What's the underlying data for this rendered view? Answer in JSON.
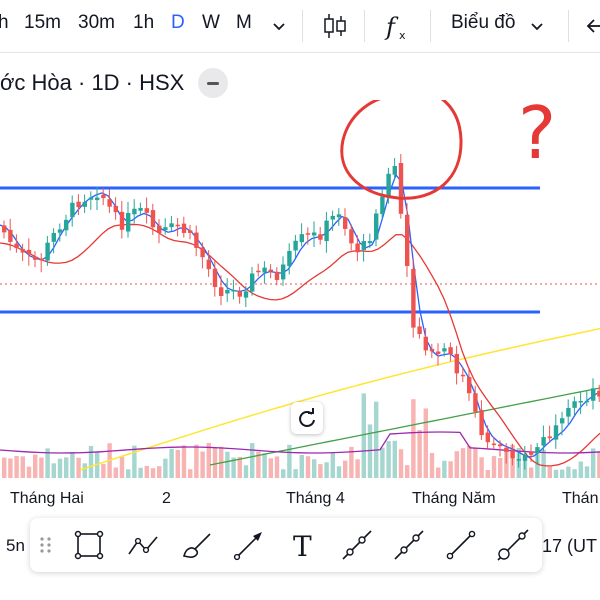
{
  "toolbar": {
    "timeframes": [
      "h",
      "15m",
      "30m",
      "1h",
      "D",
      "W",
      "M"
    ],
    "active": "D",
    "chart_type_label": "Biểu đồ"
  },
  "symbol": {
    "title": "ớc Hòa · 1D · HSX"
  },
  "xaxis": {
    "labels": [
      "Tháng Hai",
      "2",
      "Tháng 4",
      "Tháng Năm",
      "Thán"
    ]
  },
  "bottom": {
    "left_text": "5n",
    "right_text": "17 (UT"
  },
  "annotations": {
    "question_mark": "?"
  },
  "colors": {
    "up": "#26a69a",
    "down": "#ef5350",
    "hline": "#2962ff",
    "ma_fast": "#2962ff",
    "ma_mid": "#e53935",
    "ma_slow": "#ffe633",
    "ma_long": "#43a047",
    "vol_ma": "#9c27b0",
    "accent": "#2962ff"
  },
  "icons": [
    "chevron-down-icon",
    "candles-icon",
    "function-icon",
    "back-arrow-icon",
    "reset-icon",
    "drag-handle-icon",
    "rectangle-icon",
    "path-icon",
    "brush-icon",
    "arrow-icon",
    "text-icon",
    "ray-icon",
    "trend-line-icon",
    "line-icon",
    "extended-line-icon"
  ]
}
